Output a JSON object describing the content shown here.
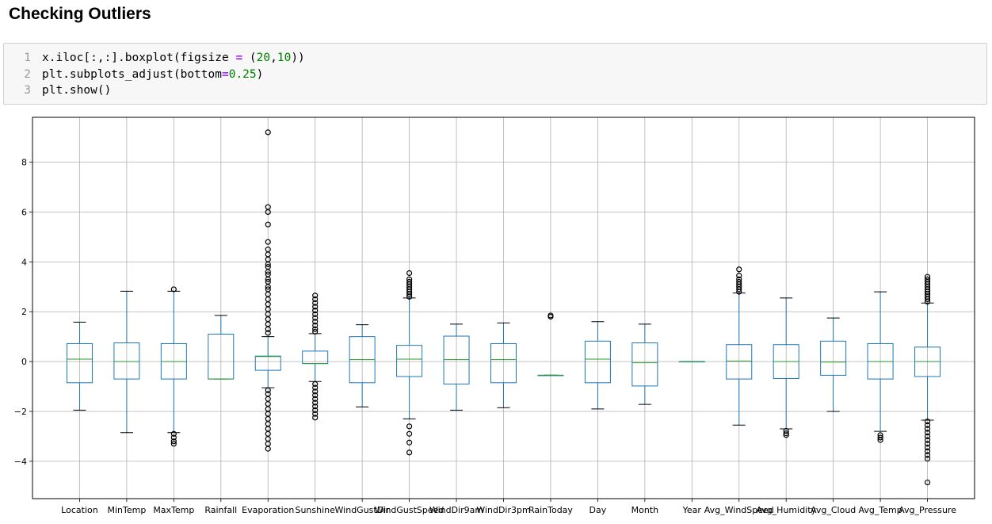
{
  "heading": "Checking Outliers",
  "code": {
    "line_numbers": [
      "1",
      "2",
      "3"
    ],
    "lines": [
      [
        [
          "x.iloc[:,:].boxplot(figsize ",
          "t"
        ],
        [
          "=",
          "op"
        ],
        [
          " (",
          "t"
        ],
        [
          "20",
          "n"
        ],
        [
          ",",
          "t"
        ],
        [
          "10",
          "n"
        ],
        [
          "))",
          "t"
        ]
      ],
      [
        [
          "plt.subplots_adjust(bottom",
          "t"
        ],
        [
          "=",
          "op"
        ],
        [
          "0.25",
          "n"
        ],
        [
          ")",
          "t"
        ]
      ],
      [
        [
          "plt.show()",
          "t"
        ]
      ]
    ]
  },
  "chart_data": {
    "type": "boxplot",
    "title": "",
    "xlabel": "",
    "ylabel": "",
    "ylim": [
      -5.5,
      9.8
    ],
    "yticks": [
      -4,
      -2,
      0,
      2,
      4,
      6,
      8
    ],
    "grid": true,
    "colors": {
      "box": "#1f77b4",
      "median": "#2ca02c",
      "outlier": "#000000",
      "grid": "#b0b0b0"
    },
    "categories": [
      "Location",
      "MinTemp",
      "MaxTemp",
      "Rainfall",
      "Evaporation",
      "Sunshine",
      "WindGustDir",
      "WindGustSpeed",
      "WindDir9am",
      "WindDir3pm",
      "RainToday",
      "Day",
      "Month",
      "Year",
      "Avg_WindSpeed",
      "Avg_Humidity",
      "Avg_Cloud",
      "Avg_Temp",
      "Avg_Pressure"
    ],
    "boxes": [
      {
        "whislo": -1.95,
        "q1": -0.85,
        "med": 0.1,
        "q3": 0.72,
        "whishi": 1.58,
        "fliers": []
      },
      {
        "whislo": -2.85,
        "q1": -0.7,
        "med": 0.0,
        "q3": 0.75,
        "whishi": 2.82,
        "fliers": []
      },
      {
        "whislo": -2.85,
        "q1": -0.7,
        "med": 0.0,
        "q3": 0.72,
        "whishi": 2.82,
        "fliers": [
          2.9,
          -2.9,
          -3.05,
          -3.2,
          -3.3
        ]
      },
      {
        "whislo": -0.7,
        "q1": -0.7,
        "med": -0.7,
        "q3": 1.1,
        "whishi": 1.85,
        "fliers": []
      },
      {
        "whislo": -1.05,
        "q1": -0.35,
        "med": 0.2,
        "q3": 0.22,
        "whishi": 1.0,
        "fliers": [
          9.2,
          6.2,
          6.0,
          5.5,
          4.8,
          4.5,
          4.3,
          4.1,
          3.9,
          3.8,
          3.6,
          3.5,
          3.3,
          3.2,
          3.0,
          2.9,
          2.7,
          2.5,
          2.3,
          2.1,
          1.9,
          1.7,
          1.5,
          1.3,
          1.15,
          -1.15,
          -1.3,
          -1.5,
          -1.7,
          -1.9,
          -2.1,
          -2.3,
          -2.5,
          -2.7,
          -2.9,
          -3.1,
          -3.3,
          -3.5
        ]
      },
      {
        "whislo": -0.8,
        "q1": -0.08,
        "med": -0.08,
        "q3": 0.42,
        "whishi": 1.12,
        "fliers": [
          2.65,
          2.5,
          2.35,
          2.2,
          2.05,
          1.9,
          1.75,
          1.6,
          1.45,
          1.3,
          1.2,
          -0.9,
          -1.05,
          -1.2,
          -1.35,
          -1.5,
          -1.65,
          -1.8,
          -1.95,
          -2.1,
          -2.25
        ]
      },
      {
        "whislo": -1.82,
        "q1": -0.85,
        "med": 0.08,
        "q3": 1.0,
        "whishi": 1.48,
        "fliers": []
      },
      {
        "whislo": -2.3,
        "q1": -0.6,
        "med": 0.1,
        "q3": 0.65,
        "whishi": 2.55,
        "fliers": [
          3.55,
          3.3,
          3.2,
          3.1,
          3.0,
          2.9,
          2.8,
          2.7,
          2.6,
          -2.6,
          -2.9,
          -3.25,
          -3.65
        ]
      },
      {
        "whislo": -1.95,
        "q1": -0.9,
        "med": 0.08,
        "q3": 1.02,
        "whishi": 1.5,
        "fliers": []
      },
      {
        "whislo": -1.85,
        "q1": -0.85,
        "med": 0.08,
        "q3": 0.72,
        "whishi": 1.55,
        "fliers": []
      },
      {
        "whislo": -0.55,
        "q1": -0.55,
        "med": -0.55,
        "q3": -0.55,
        "whishi": -0.55,
        "fliers": [
          1.8,
          1.85
        ]
      },
      {
        "whislo": -1.9,
        "q1": -0.85,
        "med": 0.1,
        "q3": 0.82,
        "whishi": 1.6,
        "fliers": []
      },
      {
        "whislo": -1.72,
        "q1": -0.98,
        "med": -0.05,
        "q3": 0.75,
        "whishi": 1.5,
        "fliers": []
      },
      {
        "whislo": 0.0,
        "q1": 0.0,
        "med": 0.0,
        "q3": 0.0,
        "whishi": 0.0,
        "fliers": []
      },
      {
        "whislo": -2.55,
        "q1": -0.7,
        "med": 0.02,
        "q3": 0.68,
        "whishi": 2.75,
        "fliers": [
          3.7,
          3.45,
          3.3,
          3.2,
          3.1,
          3.0,
          2.9,
          2.8
        ]
      },
      {
        "whislo": -2.7,
        "q1": -0.68,
        "med": 0.0,
        "q3": 0.68,
        "whishi": 2.55,
        "fliers": [
          -2.78,
          -2.88,
          -2.95
        ]
      },
      {
        "whislo": -2.0,
        "q1": -0.55,
        "med": -0.02,
        "q3": 0.82,
        "whishi": 1.75,
        "fliers": []
      },
      {
        "whislo": -2.8,
        "q1": -0.7,
        "med": 0.0,
        "q3": 0.72,
        "whishi": 2.8,
        "fliers": [
          -2.95,
          -3.05,
          -3.15
        ]
      },
      {
        "whislo": -2.35,
        "q1": -0.6,
        "med": 0.0,
        "q3": 0.58,
        "whishi": 2.35,
        "fliers": [
          3.4,
          3.3,
          3.2,
          3.1,
          3.0,
          2.9,
          2.8,
          2.7,
          2.6,
          2.5,
          2.4,
          -2.4,
          -2.55,
          -2.7,
          -2.85,
          -3.0,
          -3.15,
          -3.3,
          -3.45,
          -3.6,
          -3.75,
          -3.9,
          -4.85
        ]
      }
    ]
  }
}
